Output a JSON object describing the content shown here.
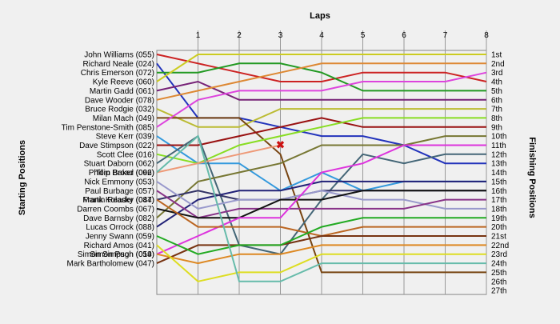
{
  "chart_data": {
    "type": "line",
    "title": "",
    "xlabel": "Laps",
    "ylabel_left": "Starting Positions",
    "ylabel_right": "Finishing Positions",
    "laps": [
      1,
      2,
      3,
      4,
      5,
      6,
      7,
      8
    ],
    "finishing_labels": [
      "1st",
      "2nd",
      "3rd",
      "4th",
      "5th",
      "6th",
      "7th",
      "8th",
      "9th",
      "10th",
      "11th",
      "12th",
      "13th",
      "14th",
      "15th",
      "16th",
      "17th",
      "18th",
      "19th",
      "20th",
      "21st",
      "22nd",
      "23rd",
      "24th",
      "25th",
      "26th",
      "27th"
    ],
    "retired_marker": "✖",
    "series": [
      {
        "name": "John Williams (055)",
        "color": "#cc2222",
        "positions": [
          1,
          2,
          3,
          4,
          4,
          3,
          3,
          3,
          4
        ]
      },
      {
        "name": "Richard Neale (024)",
        "color": "#2233bb",
        "positions": [
          2,
          8,
          8,
          9,
          10,
          10,
          11,
          13,
          13
        ]
      },
      {
        "name": "Chris Emerson (072)",
        "color": "#229922",
        "positions": [
          3,
          3,
          2,
          2,
          3,
          5,
          5,
          5,
          5
        ]
      },
      {
        "name": "Kyle Reeve (060)",
        "color": "#cccc22",
        "positions": [
          4,
          1,
          1,
          1,
          1,
          1,
          1,
          1,
          1
        ]
      },
      {
        "name": "Martin Gadd (061)",
        "color": "#772277",
        "positions": [
          5,
          4,
          6,
          6,
          6,
          6,
          6,
          6,
          6
        ]
      },
      {
        "name": "Dave Wooder (078)",
        "color": "#dd8833",
        "positions": [
          6,
          5,
          4,
          3,
          2,
          2,
          2,
          2,
          2
        ]
      },
      {
        "name": "Bruce Rodgie (032)",
        "color": "#bbbb33",
        "positions": [
          7,
          9,
          9,
          7,
          7,
          7,
          7,
          7,
          7
        ]
      },
      {
        "name": "Milan Mach (049)",
        "color": "#774411",
        "positions": [
          8,
          8,
          8,
          12,
          25,
          25,
          25,
          25,
          25
        ]
      },
      {
        "name": "Tim Penstone-Smith (085)",
        "color": "#dd44dd",
        "positions": [
          9,
          6,
          5,
          5,
          5,
          4,
          4,
          4,
          3
        ]
      },
      {
        "name": "Steve Kerr (039)",
        "color": "#3399dd",
        "positions": [
          10,
          13,
          13,
          16,
          14,
          16,
          15,
          15,
          15
        ]
      },
      {
        "name": "Dave Stimpson (022)",
        "color": "#991111",
        "positions": [
          11,
          11,
          10,
          9,
          8,
          9,
          9,
          9,
          9
        ]
      },
      {
        "name": "Scott Clee (016)",
        "color": "#88dd22",
        "positions": [
          12,
          13,
          11,
          10,
          9,
          8,
          8,
          8,
          8
        ]
      },
      {
        "name": "Stuart Daborn (062)",
        "color": "#446677",
        "positions": [
          13,
          10,
          22,
          23,
          17,
          12,
          13,
          12,
          12
        ]
      },
      {
        "name": "Phillip Broad (092)",
        "color": "#ee9977",
        "positions": [
          14,
          13,
          12,
          11,
          null,
          null,
          null,
          null,
          null
        ]
      },
      {
        "name": "Dave Barnsby (082)",
        "color": "#777733",
        "positions": [
          19,
          15,
          14,
          13,
          11,
          11,
          11,
          10,
          10
        ]
      },
      {
        "name": "Lucas Orrock (088)",
        "color": "#222277",
        "positions": [
          20,
          17,
          16,
          16,
          15,
          15,
          15,
          15,
          15
        ]
      },
      {
        "name": "Frank Kolasky (044)",
        "color": "#333366",
        "positions": [
          17,
          16,
          17,
          17,
          16,
          16,
          16,
          16,
          16
        ]
      },
      {
        "name": "Nick Emmony (053)",
        "color": "#9999cc",
        "positions": [
          15,
          18,
          17,
          17,
          16,
          17,
          17,
          18,
          18
        ]
      },
      {
        "name": "Paul Burbage (057)",
        "color": "#883388",
        "positions": [
          16,
          19,
          18,
          18,
          18,
          18,
          18,
          17,
          17
        ]
      },
      {
        "name": "Darren Coombs (067)",
        "color": "#111111",
        "positions": [
          18,
          19,
          19,
          17,
          17,
          16,
          16,
          16,
          16
        ]
      },
      {
        "name": "Simon Pugh (054)",
        "color": "#dd33dd",
        "positions": [
          23,
          21,
          19,
          19,
          14,
          13,
          11,
          11,
          11
        ]
      },
      {
        "name": "Martin Reader (087)",
        "color": "#bb6622",
        "positions": [
          17,
          20,
          20,
          20,
          21,
          20,
          20,
          20,
          20
        ]
      },
      {
        "name": "Mark Bartholomew (047)",
        "color": "#773311",
        "positions": [
          24,
          22,
          22,
          22,
          21,
          21,
          21,
          21,
          21
        ]
      },
      {
        "name": "Jenny Swann (059)",
        "color": "#22aa22",
        "positions": [
          21,
          23,
          22,
          22,
          20,
          19,
          19,
          19,
          19
        ]
      },
      {
        "name": "Simon Simpson (019)",
        "color": "#dd8822",
        "positions": [
          23,
          24,
          23,
          23,
          22,
          22,
          22,
          22,
          22
        ]
      },
      {
        "name": "Richard Amos (041)",
        "color": "#dddd22",
        "positions": [
          22,
          26,
          25,
          25,
          23,
          23,
          23,
          23,
          23
        ]
      },
      {
        "name": "Tom Baker (066)",
        "color": "#66bbaa",
        "positions": [
          14,
          10,
          26,
          26,
          24,
          24,
          24,
          24,
          24
        ]
      }
    ]
  }
}
